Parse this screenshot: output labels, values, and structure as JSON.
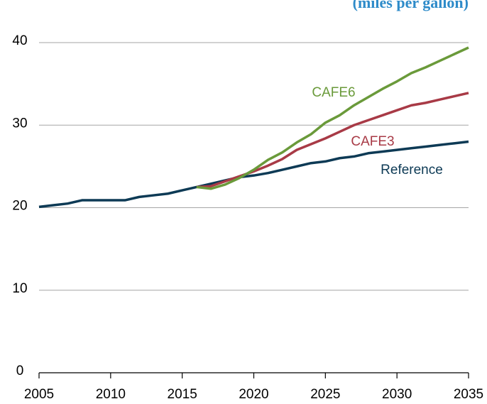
{
  "chart_data": {
    "type": "line",
    "subtitle": "(miles per gallon)",
    "x": [
      2005,
      2006,
      2007,
      2008,
      2009,
      2010,
      2011,
      2012,
      2013,
      2014,
      2015,
      2016,
      2017,
      2018,
      2019,
      2020,
      2021,
      2022,
      2023,
      2024,
      2025,
      2026,
      2027,
      2028,
      2029,
      2030,
      2031,
      2032,
      2033,
      2034,
      2035
    ],
    "series": [
      {
        "name": "Reference",
        "color": "#0d3a55",
        "values": [
          20.1,
          20.3,
          20.5,
          20.9,
          20.9,
          20.9,
          20.9,
          21.3,
          21.5,
          21.7,
          22.1,
          22.5,
          22.9,
          23.3,
          23.7,
          23.9,
          24.2,
          24.6,
          25.0,
          25.4,
          25.6,
          26.0,
          26.2,
          26.6,
          26.8,
          27.0,
          27.2,
          27.4,
          27.6,
          27.8,
          28.0
        ]
      },
      {
        "name": "CAFE3",
        "color": "#a83a46",
        "values": [
          null,
          null,
          null,
          null,
          null,
          null,
          null,
          null,
          null,
          null,
          null,
          22.5,
          22.6,
          23.2,
          23.8,
          24.4,
          25.1,
          25.9,
          27.0,
          27.7,
          28.4,
          29.2,
          30.0,
          30.6,
          31.2,
          31.8,
          32.4,
          32.7,
          33.1,
          33.5,
          33.9
        ]
      },
      {
        "name": "CAFE6",
        "color": "#6a9a3a",
        "values": [
          null,
          null,
          null,
          null,
          null,
          null,
          null,
          null,
          null,
          null,
          null,
          22.5,
          22.3,
          22.8,
          23.6,
          24.6,
          25.8,
          26.7,
          27.9,
          28.9,
          30.3,
          31.2,
          32.4,
          33.4,
          34.4,
          35.3,
          36.3,
          37.0,
          37.8,
          38.6,
          39.4
        ]
      }
    ],
    "xlim": [
      2005,
      2035
    ],
    "xticks": [
      2005,
      2010,
      2015,
      2020,
      2025,
      2030,
      2035
    ],
    "ylim": [
      0,
      40
    ],
    "yticks": [
      0,
      10,
      20,
      30,
      40
    ],
    "grid": true
  }
}
